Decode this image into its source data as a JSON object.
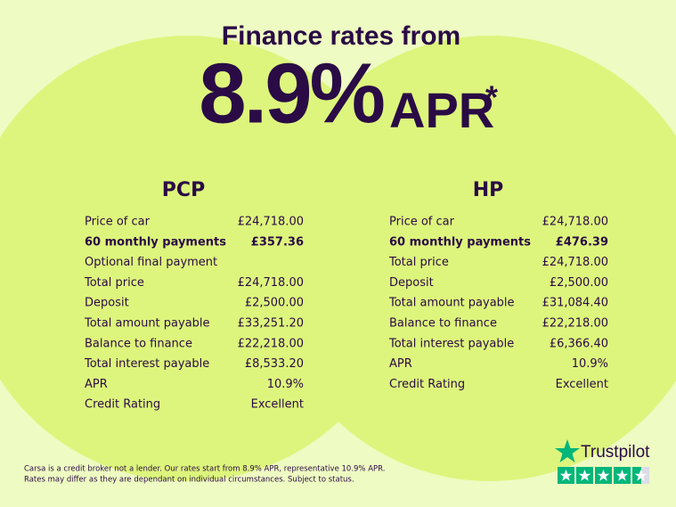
{
  "header": {
    "title": "Finance rates from",
    "rate": "8.9%",
    "unit": "APR",
    "mark": "*"
  },
  "plans": [
    {
      "name": "PCP",
      "rows": [
        {
          "label": "Price of car",
          "value": "£24,718.00"
        },
        {
          "label": "60 monthly payments",
          "value": "£357.36",
          "bold": true
        },
        {
          "label": "Optional final payment"
        },
        {
          "label": "Total price",
          "value": "£24,718.00"
        },
        {
          "label": "Deposit",
          "value": "£2,500.00"
        },
        {
          "label": "Total amount payable",
          "value": "£33,251.20"
        },
        {
          "label": "Balance to finance",
          "value": "£22,218.00"
        },
        {
          "label": "Total interest payable",
          "value": "£8,533.20"
        },
        {
          "label": "APR",
          "value": "10.9%"
        },
        {
          "label": "Credit Rating",
          "value": "Excellent"
        }
      ]
    },
    {
      "name": "HP",
      "rows": [
        {
          "label": "Price of car",
          "value": "£24,718.00"
        },
        {
          "label": "60 monthly payments",
          "value": "£476.39",
          "bold": true
        },
        {
          "label": "Total price",
          "value": "£24,718.00"
        },
        {
          "label": "Deposit",
          "value": "£2,500.00"
        },
        {
          "label": "Total amount payable",
          "value": "£31,084.40"
        },
        {
          "label": "Balance to finance",
          "value": "£22,218.00"
        },
        {
          "label": "Total interest payable",
          "value": "£6,366.40"
        },
        {
          "label": "APR",
          "value": "10.9%"
        },
        {
          "label": "Credit Rating",
          "value": "Excellent"
        }
      ]
    }
  ],
  "footer": {
    "lines": [
      "Carsa is a credit broker not a lender. Our rates start from 8.9% APR, representative 10.9% APR.",
      "Rates may differ as they are dependant on individual circumstances. Subject to status."
    ]
  },
  "badge": {
    "brand": "Trustpilot"
  }
}
